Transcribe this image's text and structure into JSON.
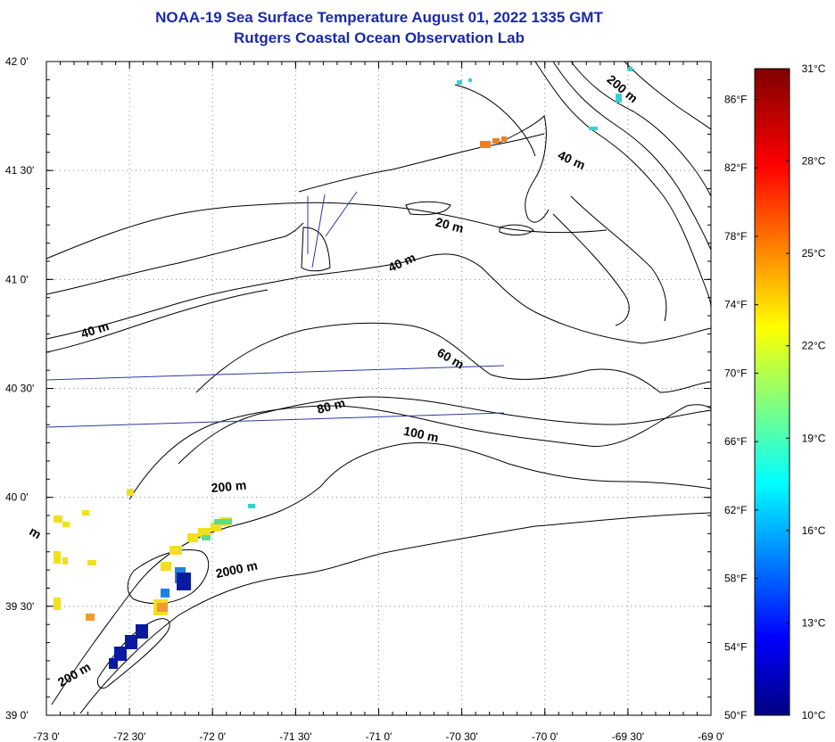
{
  "title_line1": "NOAA-19 Sea Surface Temperature August 01, 2022 1335 GMT",
  "title_line2": "Rutgers Coastal Ocean Observation Lab",
  "map": {
    "lon_range": [
      -73.0,
      -69.0
    ],
    "lat_range": [
      39.0,
      42.0
    ],
    "lon_ticks": [
      {
        "value": -73.0,
        "label": "-73 0'"
      },
      {
        "value": -72.5,
        "label": "-72 30'"
      },
      {
        "value": -72.0,
        "label": "-72 0'"
      },
      {
        "value": -71.5,
        "label": "-71 30'"
      },
      {
        "value": -71.0,
        "label": "-71 0'"
      },
      {
        "value": -70.5,
        "label": "-70 30'"
      },
      {
        "value": -70.0,
        "label": "-70 0'"
      },
      {
        "value": -69.5,
        "label": "-69 30'"
      },
      {
        "value": -69.0,
        "label": "-69 0'"
      }
    ],
    "lat_ticks": [
      {
        "value": 42.0,
        "label": "42 0'"
      },
      {
        "value": 41.5,
        "label": "41 30'"
      },
      {
        "value": 41.0,
        "label": "41 0'"
      },
      {
        "value": 40.5,
        "label": "40 30'"
      },
      {
        "value": 40.0,
        "label": "40 0'"
      },
      {
        "value": 39.5,
        "label": "39 30'"
      },
      {
        "value": 39.0,
        "label": "39 0'"
      }
    ],
    "depth_labels": [
      {
        "text": "200 m",
        "lon": -69.55,
        "lat": 41.86,
        "rotate": 40
      },
      {
        "text": "40 m",
        "lon": -69.85,
        "lat": 41.53,
        "rotate": 25
      },
      {
        "text": "20 m",
        "lon": -70.58,
        "lat": 41.23,
        "rotate": 15
      },
      {
        "text": "40 m",
        "lon": -70.85,
        "lat": 41.06,
        "rotate": -25
      },
      {
        "text": "40 m",
        "lon": -72.7,
        "lat": 40.75,
        "rotate": -18
      },
      {
        "text": "60 m",
        "lon": -70.58,
        "lat": 40.62,
        "rotate": 30
      },
      {
        "text": "80 m",
        "lon": -71.28,
        "lat": 40.4,
        "rotate": -15
      },
      {
        "text": "100 m",
        "lon": -70.75,
        "lat": 40.27,
        "rotate": 12
      },
      {
        "text": "200 m",
        "lon": -71.9,
        "lat": 40.03,
        "rotate": -5
      },
      {
        "text": "2000 m",
        "lon": -71.85,
        "lat": 39.65,
        "rotate": -12
      },
      {
        "text": "200 m",
        "lon": -72.82,
        "lat": 39.17,
        "rotate": -30
      },
      {
        "text": "m",
        "lon": -73.08,
        "lat": 39.82,
        "rotate": 30
      }
    ]
  },
  "colorbar": {
    "celsius_labels": [
      {
        "value": 31,
        "label": "31°C"
      },
      {
        "value": 28,
        "label": "28°C"
      },
      {
        "value": 25,
        "label": "25°C"
      },
      {
        "value": 22,
        "label": "22°C"
      },
      {
        "value": 19,
        "label": "19°C"
      },
      {
        "value": 16,
        "label": "16°C"
      },
      {
        "value": 13,
        "label": "13°C"
      },
      {
        "value": 10,
        "label": "10°C"
      }
    ],
    "fahrenheit_labels": [
      {
        "value": 86,
        "label": "86°F"
      },
      {
        "value": 82,
        "label": "82°F"
      },
      {
        "value": 78,
        "label": "78°F"
      },
      {
        "value": 74,
        "label": "74°F"
      },
      {
        "value": 70,
        "label": "70°F"
      },
      {
        "value": 66,
        "label": "66°F"
      },
      {
        "value": 62,
        "label": "62°F"
      },
      {
        "value": 58,
        "label": "58°F"
      },
      {
        "value": 54,
        "label": "54°F"
      },
      {
        "value": 50,
        "label": "50°F"
      }
    ],
    "min_c": 10,
    "max_c": 31,
    "gradient_stops": [
      {
        "t": 0.0,
        "color": "#000080"
      },
      {
        "t": 0.12,
        "color": "#0000ff"
      },
      {
        "t": 0.36,
        "color": "#00ffff"
      },
      {
        "t": 0.6,
        "color": "#ffff00"
      },
      {
        "t": 0.85,
        "color": "#ff0000"
      },
      {
        "t": 1.0,
        "color": "#800000"
      }
    ]
  },
  "colors": {
    "title": "#1a2aa8",
    "track_line": "#2a3aa0",
    "contour": "#000000",
    "grid": "#888888"
  }
}
